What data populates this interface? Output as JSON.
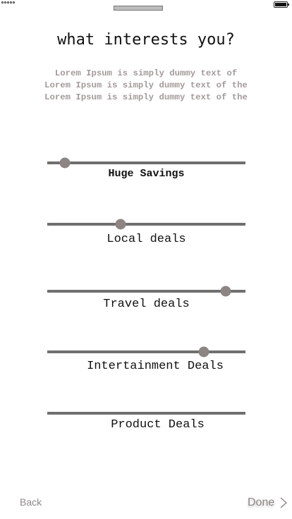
{
  "header": {
    "title": "what interests you?",
    "description_lines": [
      "Lorem Ipsum is simply dummy text of",
      "Lorem Ipsum is simply dummy text of the",
      "Lorem Ipsum is simply dummy text of the"
    ]
  },
  "sliders": [
    {
      "label": "Huge Savings",
      "level_pct": 9
    },
    {
      "label": "Local deals",
      "level_pct": 37
    },
    {
      "label": "Travel deals",
      "level_pct": 90
    },
    {
      "label": "Intertainment Deals",
      "level_pct": 79
    },
    {
      "label": "Product Deals",
      "level_pct": null
    }
  ],
  "footer": {
    "back_label": "Back",
    "done_label": "Done"
  },
  "colors": {
    "track": "#6f6f6f",
    "thumb": "#8d8484",
    "muted_text": "#a39a9a"
  }
}
